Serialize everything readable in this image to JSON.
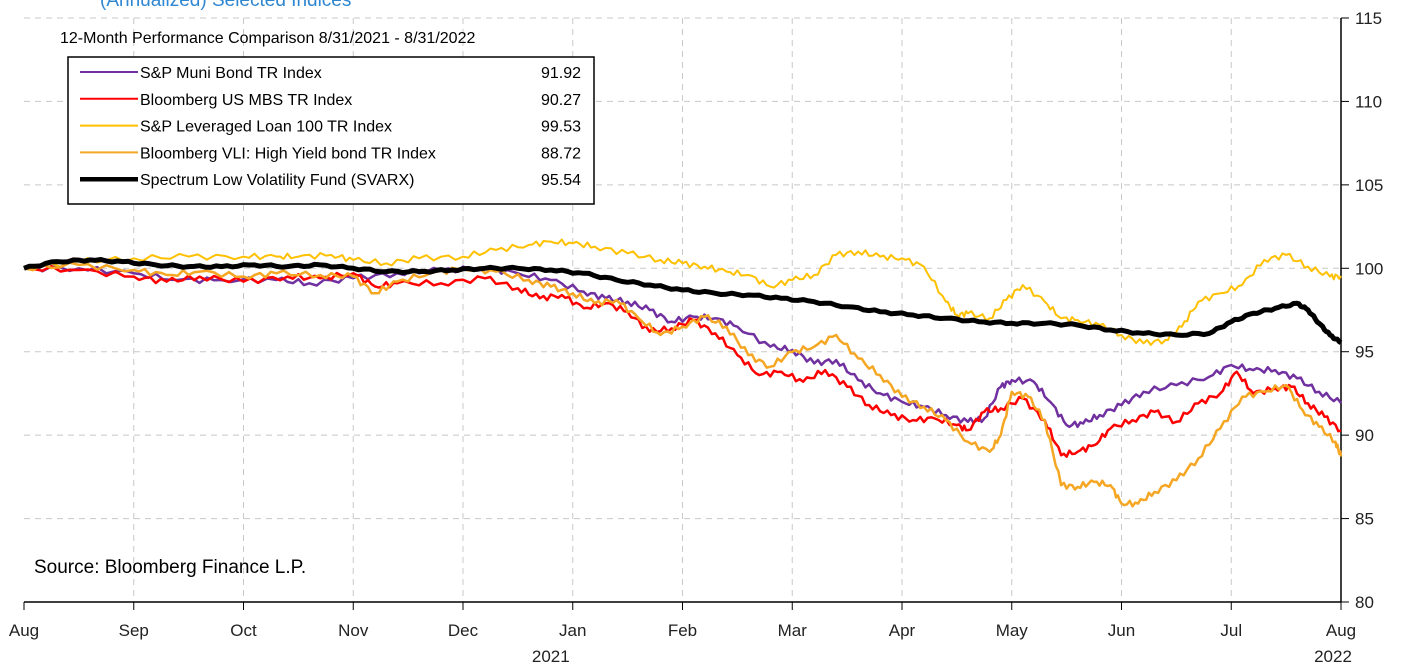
{
  "header": {
    "text": "(Annualized) Selected Indices"
  },
  "chart_data": {
    "type": "line",
    "title": "12-Month Performance Comparison 8/31/2021 - 8/31/2022",
    "source": "Source: Bloomberg Finance L.P.",
    "xlabel": "",
    "ylabel": "",
    "ylim": [
      80,
      115
    ],
    "yticks": [
      80,
      85,
      90,
      95,
      100,
      105,
      110,
      115
    ],
    "y_axis_side": "right",
    "grid": true,
    "legend_placement": "top-left",
    "x_month_labels": [
      "Aug",
      "Sep",
      "Oct",
      "Nov",
      "Dec",
      "Jan",
      "Feb",
      "Mar",
      "Apr",
      "May",
      "Jun",
      "Jul",
      "Aug"
    ],
    "x_year_labels": [
      "2021",
      "2022"
    ],
    "x_unit": "months since 2021-08-01",
    "series": [
      {
        "name": "S&P Muni Bond TR Index",
        "final": "91.92",
        "color": "#7030a0",
        "width": 2.5,
        "points": [
          [
            0,
            100
          ],
          [
            0.5,
            100
          ],
          [
            1,
            99.7
          ],
          [
            1.4,
            99.3
          ],
          [
            1.8,
            99.3
          ],
          [
            2.3,
            99.3
          ],
          [
            2.6,
            99.1
          ],
          [
            3,
            99.4
          ],
          [
            3.4,
            99.7
          ],
          [
            3.8,
            99.9
          ],
          [
            4.2,
            100
          ],
          [
            4.5,
            99.7
          ],
          [
            4.8,
            99.3
          ],
          [
            5.1,
            98.6
          ],
          [
            5.3,
            98.2
          ],
          [
            5.5,
            98
          ],
          [
            5.7,
            97.5
          ],
          [
            5.9,
            96.8
          ],
          [
            6.1,
            97.1
          ],
          [
            6.3,
            97
          ],
          [
            6.5,
            96.5
          ],
          [
            6.8,
            95.3
          ],
          [
            7.0,
            95.1
          ],
          [
            7.2,
            94.3
          ],
          [
            7.4,
            94.5
          ],
          [
            7.6,
            93.3
          ],
          [
            7.8,
            92.5
          ],
          [
            8.0,
            92.0
          ],
          [
            8.2,
            91.7
          ],
          [
            8.4,
            91.2
          ],
          [
            8.6,
            90.8
          ],
          [
            8.75,
            91.0
          ],
          [
            8.9,
            92.9
          ],
          [
            9.0,
            93.3
          ],
          [
            9.2,
            93.2
          ],
          [
            9.35,
            92.0
          ],
          [
            9.5,
            90.6
          ],
          [
            9.65,
            90.7
          ],
          [
            9.8,
            91.2
          ],
          [
            10,
            91.8
          ],
          [
            10.2,
            92.6
          ],
          [
            10.5,
            93.0
          ],
          [
            10.8,
            93.5
          ],
          [
            11.0,
            94.2
          ],
          [
            11.2,
            93.9
          ],
          [
            11.4,
            93.9
          ],
          [
            11.6,
            93.4
          ],
          [
            11.8,
            92.6
          ],
          [
            12.0,
            91.92
          ]
        ]
      },
      {
        "name": "Bloomberg US MBS TR Index",
        "final": "90.27",
        "color": "#ff0000",
        "width": 2.5,
        "points": [
          [
            0,
            100
          ],
          [
            0.5,
            99.9
          ],
          [
            1,
            99.5
          ],
          [
            1.3,
            99.2
          ],
          [
            1.6,
            99.5
          ],
          [
            2,
            99.2
          ],
          [
            2.4,
            99.5
          ],
          [
            2.7,
            99.4
          ],
          [
            3,
            99.7
          ],
          [
            3.2,
            98.9
          ],
          [
            3.4,
            99.1
          ],
          [
            3.8,
            99.1
          ],
          [
            4.2,
            99.4
          ],
          [
            4.5,
            98.8
          ],
          [
            4.7,
            98.2
          ],
          [
            4.9,
            98.4
          ],
          [
            5.1,
            97.6
          ],
          [
            5.3,
            97.9
          ],
          [
            5.5,
            97.4
          ],
          [
            5.7,
            96.2
          ],
          [
            5.9,
            96.4
          ],
          [
            6.1,
            96.9
          ],
          [
            6.3,
            96.1
          ],
          [
            6.5,
            94.8
          ],
          [
            6.7,
            93.6
          ],
          [
            6.9,
            93.8
          ],
          [
            7.1,
            93.2
          ],
          [
            7.3,
            93.9
          ],
          [
            7.5,
            92.9
          ],
          [
            7.7,
            91.8
          ],
          [
            7.9,
            91.2
          ],
          [
            8.1,
            90.9
          ],
          [
            8.3,
            91.0
          ],
          [
            8.5,
            90.6
          ],
          [
            8.6,
            90.3
          ],
          [
            8.75,
            91.4
          ],
          [
            8.9,
            91.6
          ],
          [
            9.1,
            92.2
          ],
          [
            9.3,
            90.9
          ],
          [
            9.45,
            88.8
          ],
          [
            9.6,
            89.0
          ],
          [
            9.75,
            89.4
          ],
          [
            9.9,
            90.4
          ],
          [
            10.1,
            90.9
          ],
          [
            10.3,
            91.4
          ],
          [
            10.5,
            90.8
          ],
          [
            10.7,
            91.9
          ],
          [
            10.9,
            92.5
          ],
          [
            11.05,
            93.8
          ],
          [
            11.2,
            92.5
          ],
          [
            11.4,
            92.8
          ],
          [
            11.55,
            92.9
          ],
          [
            11.7,
            91.9
          ],
          [
            11.85,
            91.1
          ],
          [
            12.0,
            90.27
          ]
        ]
      },
      {
        "name": "S&P Leveraged Loan 100 TR Index",
        "final": "99.53",
        "color": "#ffc000",
        "width": 2,
        "points": [
          [
            0,
            100
          ],
          [
            0.5,
            100.4
          ],
          [
            1,
            100.6
          ],
          [
            1.5,
            100.7
          ],
          [
            2,
            100.7
          ],
          [
            2.3,
            100.7
          ],
          [
            2.5,
            100.7
          ],
          [
            2.8,
            100.8
          ],
          [
            3.0,
            100.5
          ],
          [
            3.3,
            100.3
          ],
          [
            3.6,
            100.6
          ],
          [
            4.0,
            100.7
          ],
          [
            4.3,
            101.1
          ],
          [
            4.6,
            101.4
          ],
          [
            4.8,
            101.6
          ],
          [
            5.0,
            101.5
          ],
          [
            5.2,
            101.3
          ],
          [
            5.5,
            100.9
          ],
          [
            5.8,
            100.5
          ],
          [
            6.0,
            100.3
          ],
          [
            6.2,
            100.1
          ],
          [
            6.4,
            99.8
          ],
          [
            6.6,
            99.6
          ],
          [
            6.8,
            98.9
          ],
          [
            7.0,
            99.3
          ],
          [
            7.2,
            99.6
          ],
          [
            7.4,
            100.8
          ],
          [
            7.6,
            101.0
          ],
          [
            7.8,
            100.7
          ],
          [
            8.0,
            100.6
          ],
          [
            8.2,
            100.1
          ],
          [
            8.4,
            98.0
          ],
          [
            8.5,
            97.2
          ],
          [
            8.6,
            97.3
          ],
          [
            8.8,
            97.0
          ],
          [
            8.95,
            98.1
          ],
          [
            9.1,
            99.0
          ],
          [
            9.3,
            98.0
          ],
          [
            9.45,
            97.0
          ],
          [
            9.6,
            96.9
          ],
          [
            9.8,
            96.6
          ],
          [
            10.0,
            96.0
          ],
          [
            10.2,
            95.5
          ],
          [
            10.4,
            95.7
          ],
          [
            10.55,
            96.5
          ],
          [
            10.7,
            98.0
          ],
          [
            10.9,
            98.5
          ],
          [
            11.1,
            99.0
          ],
          [
            11.3,
            100.5
          ],
          [
            11.5,
            100.8
          ],
          [
            11.7,
            100.1
          ],
          [
            11.9,
            99.5
          ],
          [
            12.0,
            99.53
          ]
        ]
      },
      {
        "name": "Bloomberg VLI: High Yield bond TR Index",
        "final": "88.72",
        "color": "#f5a623",
        "width": 2.5,
        "points": [
          [
            0,
            100
          ],
          [
            0.5,
            100.2
          ],
          [
            1,
            99.9
          ],
          [
            1.3,
            99.6
          ],
          [
            1.6,
            99.8
          ],
          [
            2,
            99.5
          ],
          [
            2.3,
            99.7
          ],
          [
            2.7,
            99.6
          ],
          [
            3.0,
            99.5
          ],
          [
            3.2,
            98.5
          ],
          [
            3.4,
            99.2
          ],
          [
            3.7,
            99.7
          ],
          [
            4.0,
            100.0
          ],
          [
            4.3,
            99.8
          ],
          [
            4.6,
            99.3
          ],
          [
            4.8,
            98.9
          ],
          [
            5.0,
            98.5
          ],
          [
            5.2,
            97.9
          ],
          [
            5.4,
            98.1
          ],
          [
            5.6,
            97.0
          ],
          [
            5.8,
            96.0
          ],
          [
            6.0,
            96.5
          ],
          [
            6.2,
            97.1
          ],
          [
            6.4,
            96.5
          ],
          [
            6.6,
            94.8
          ],
          [
            6.8,
            94.1
          ],
          [
            7.0,
            95.0
          ],
          [
            7.2,
            95.3
          ],
          [
            7.4,
            96.0
          ],
          [
            7.6,
            94.6
          ],
          [
            7.8,
            93.6
          ],
          [
            8.0,
            92.3
          ],
          [
            8.2,
            91.7
          ],
          [
            8.4,
            90.9
          ],
          [
            8.6,
            89.6
          ],
          [
            8.8,
            89.0
          ],
          [
            8.9,
            90.0
          ],
          [
            9.0,
            92.6
          ],
          [
            9.15,
            92.3
          ],
          [
            9.3,
            90.9
          ],
          [
            9.45,
            87.0
          ],
          [
            9.6,
            86.9
          ],
          [
            9.75,
            87.2
          ],
          [
            9.9,
            87.0
          ],
          [
            10.0,
            85.9
          ],
          [
            10.15,
            85.9
          ],
          [
            10.3,
            86.6
          ],
          [
            10.5,
            87.3
          ],
          [
            10.7,
            88.6
          ],
          [
            10.9,
            90.4
          ],
          [
            11.1,
            92.3
          ],
          [
            11.3,
            92.6
          ],
          [
            11.5,
            93.0
          ],
          [
            11.65,
            91.5
          ],
          [
            11.8,
            90.5
          ],
          [
            11.95,
            89.6
          ],
          [
            12.0,
            88.72
          ]
        ]
      },
      {
        "name": "Spectrum Low Volatility Fund (SVARX)",
        "final": "95.54",
        "color": "#000000",
        "width": 5,
        "points": [
          [
            0,
            100
          ],
          [
            0.3,
            100.4
          ],
          [
            0.6,
            100.5
          ],
          [
            0.9,
            100.4
          ],
          [
            1.2,
            100.2
          ],
          [
            1.5,
            100.1
          ],
          [
            1.8,
            100.1
          ],
          [
            2.1,
            100.2
          ],
          [
            2.4,
            100.1
          ],
          [
            2.7,
            100.2
          ],
          [
            3.0,
            100.0
          ],
          [
            3.3,
            99.8
          ],
          [
            3.6,
            99.8
          ],
          [
            3.9,
            99.9
          ],
          [
            4.2,
            100.0
          ],
          [
            4.5,
            100.0
          ],
          [
            4.8,
            99.9
          ],
          [
            5.1,
            99.7
          ],
          [
            5.4,
            99.3
          ],
          [
            5.7,
            99.0
          ],
          [
            6.0,
            98.7
          ],
          [
            6.3,
            98.5
          ],
          [
            6.6,
            98.4
          ],
          [
            6.9,
            98.2
          ],
          [
            7.2,
            98.0
          ],
          [
            7.5,
            97.7
          ],
          [
            7.8,
            97.4
          ],
          [
            8.1,
            97.2
          ],
          [
            8.4,
            97.0
          ],
          [
            8.7,
            96.8
          ],
          [
            9.0,
            96.7
          ],
          [
            9.3,
            96.7
          ],
          [
            9.6,
            96.6
          ],
          [
            9.9,
            96.3
          ],
          [
            10.2,
            96.1
          ],
          [
            10.5,
            96.0
          ],
          [
            10.8,
            96.1
          ],
          [
            11.0,
            96.8
          ],
          [
            11.2,
            97.3
          ],
          [
            11.4,
            97.6
          ],
          [
            11.6,
            97.9
          ],
          [
            11.7,
            97.5
          ],
          [
            11.8,
            96.7
          ],
          [
            11.9,
            96.0
          ],
          [
            12.0,
            95.54
          ]
        ]
      }
    ]
  }
}
